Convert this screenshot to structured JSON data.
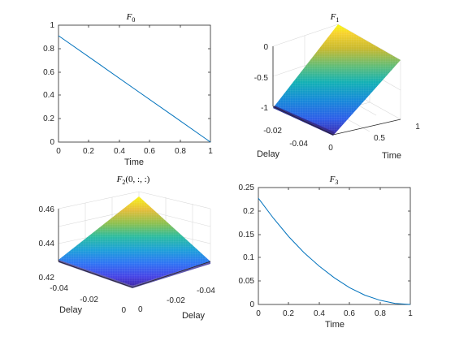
{
  "chart_data": [
    {
      "id": "f0",
      "type": "line",
      "title": "F_0",
      "title_main": "F",
      "title_sub": "0",
      "xlabel": "Time",
      "ylabel": "",
      "xlim": [
        0,
        1
      ],
      "ylim": [
        0,
        1
      ],
      "xticks": [
        "0",
        "0.2",
        "0.4",
        "0.6",
        "0.8",
        "1"
      ],
      "yticks": [
        "0",
        "0.2",
        "0.4",
        "0.6",
        "0.8",
        "1"
      ],
      "series": [
        {
          "x": [
            0,
            0.25,
            0.5,
            0.75,
            1.0
          ],
          "y": [
            0.91,
            0.6825,
            0.455,
            0.2275,
            0.0
          ]
        }
      ],
      "color": "#0072bd"
    },
    {
      "id": "f1",
      "type": "surface",
      "title": "F_1",
      "title_main": "F",
      "title_sub": "1",
      "xlabel": "Time",
      "ylabel": "Delay",
      "xlim": [
        0,
        1
      ],
      "ylim": [
        -0.05,
        0
      ],
      "zlim": [
        -1,
        0
      ],
      "xticks": [
        "0",
        "0.5",
        "1"
      ],
      "yticks": [
        "-0.04",
        "-0.02"
      ],
      "zticks": [
        "-1",
        "-0.5",
        "0"
      ],
      "surface": "z = t - 1 (constant in delay)",
      "colormap": "parula"
    },
    {
      "id": "f2",
      "type": "surface",
      "title": "F_2(0,:,:)",
      "title_main": "F",
      "title_sub": "2",
      "title_suffix": "(0, :, :)",
      "xlabel": "Delay",
      "ylabel": "Delay",
      "xlim": [
        -0.05,
        0
      ],
      "ylim": [
        -0.05,
        0
      ],
      "zlim": [
        0.42,
        0.46
      ],
      "xticks": [
        "-0.04",
        "-0.02",
        "0"
      ],
      "yticks": [
        "-0.04",
        "-0.02",
        "0"
      ],
      "zticks": [
        "0.42",
        "0.44",
        "0.46"
      ],
      "corner_values": {
        "both_zero": 0.463,
        "one_zero": 0.431,
        "both_min": 0.426
      },
      "colormap": "parula"
    },
    {
      "id": "f3",
      "type": "line",
      "title": "F_3",
      "title_main": "F",
      "title_sub": "3",
      "xlabel": "Time",
      "ylabel": "",
      "xlim": [
        0,
        1
      ],
      "ylim": [
        0,
        0.25
      ],
      "xticks": [
        "0",
        "0.2",
        "0.4",
        "0.6",
        "0.8",
        "1"
      ],
      "yticks": [
        "0",
        "0.05",
        "0.1",
        "0.15",
        "0.2",
        "0.25"
      ],
      "series": [
        {
          "x": [
            0,
            0.1,
            0.2,
            0.3,
            0.4,
            0.5,
            0.6,
            0.7,
            0.8,
            0.9,
            1.0
          ],
          "y": [
            0.227,
            0.184,
            0.145,
            0.111,
            0.082,
            0.057,
            0.036,
            0.02,
            0.009,
            0.002,
            0.0
          ]
        }
      ],
      "color": "#0072bd"
    }
  ]
}
